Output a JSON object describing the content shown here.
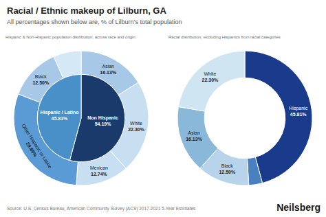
{
  "title": "Racial / Ethnic makeup of Lilburn, GA",
  "subtitle": "All percentages shown below are, % of Lilburn’s total population",
  "source": "Source: U.S. Census Bureau, American Community Survey (ACS) 2017-2021 5-Year Estimates",
  "annotations": [
    "Neilsberg"
  ],
  "chart_data": [
    {
      "type": "donut",
      "title": "Hispanic & Non-Hispanic population distribution, across race and origin",
      "data_labels": true,
      "series": [
        {
          "categories": [
            "Asian",
            "White",
            "Mexican",
            "Other Hispanic or Latino",
            "Black",
            null
          ],
          "values": [
            16.13,
            22.3,
            12.74,
            29.65,
            12.5,
            6.68
          ],
          "value_labels": [
            "16.13%",
            "22.30%",
            "12.74%",
            "29.65%",
            "12.50%",
            null
          ],
          "colors": [
            "#a8c8e8",
            "#c8dff2",
            "#c8dff2",
            "#5b9bd5",
            "#a8c8e8",
            "#d5e8f5"
          ]
        },
        {
          "categories": [
            "Non Hispanic",
            "Hispanic / Latino"
          ],
          "values": [
            54.19,
            45.81
          ],
          "value_labels": [
            "54.19%",
            "45.81%"
          ],
          "colors": [
            "#1a3a6b",
            "#4a90c8"
          ]
        }
      ]
    },
    {
      "type": "donut",
      "title": "Racial distribution, excluding Hispanics from racial categories",
      "data_labels": true,
      "categories": [
        "Hispanic",
        null,
        "Black",
        "Asian",
        "White"
      ],
      "values": [
        45.81,
        3.26,
        12.5,
        16.13,
        22.3
      ],
      "value_labels": [
        "45.81%",
        null,
        "12.50%",
        "16.13%",
        "22.30%"
      ],
      "colors": [
        "#1a3a8c",
        "#4a7fc0",
        "#b8d4ea",
        "#8ab8d8",
        "#d0e5f2"
      ]
    }
  ]
}
